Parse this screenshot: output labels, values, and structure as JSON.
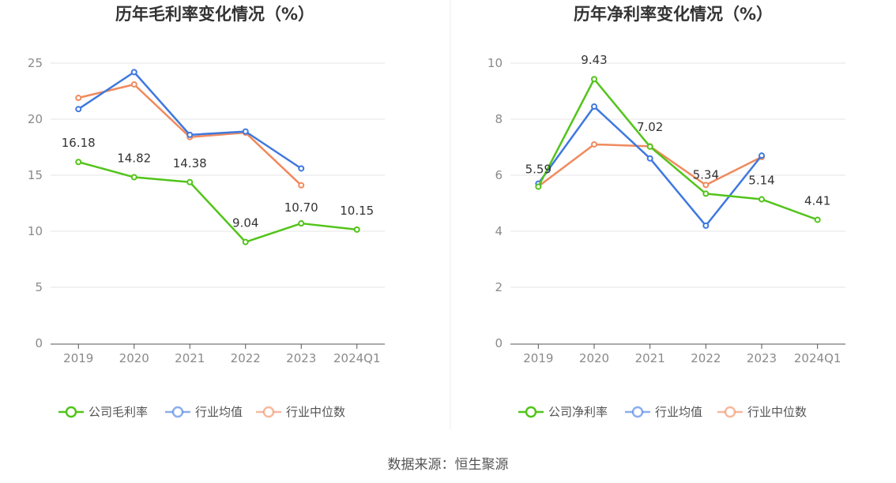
{
  "source": "数据来源：恒生聚源",
  "chart_data": [
    {
      "type": "line",
      "title": "历年毛利率变化情况（%）",
      "categories": [
        "2019",
        "2020",
        "2021",
        "2022",
        "2023",
        "2024Q1"
      ],
      "ylim": [
        0,
        25
      ],
      "yticks": [
        0,
        5,
        10,
        15,
        20,
        25
      ],
      "grid": true,
      "legend_position": "bottom",
      "series": [
        {
          "name": "公司毛利率",
          "color": "#52c41a",
          "values": [
            16.18,
            14.82,
            14.38,
            9.04,
            10.7,
            10.15
          ],
          "labels": [
            "16.18",
            "14.82",
            "14.38",
            "9.04",
            "10.70",
            "10.15"
          ]
        },
        {
          "name": "行业均值",
          "color": "#3f78e0",
          "values": [
            20.9,
            24.2,
            18.6,
            18.9,
            15.6,
            null
          ]
        },
        {
          "name": "行业中位数",
          "color": "#f08a5d",
          "values": [
            21.9,
            23.1,
            18.4,
            18.8,
            14.1,
            null
          ]
        }
      ]
    },
    {
      "type": "line",
      "title": "历年净利率变化情况（%）",
      "categories": [
        "2019",
        "2020",
        "2021",
        "2022",
        "2023",
        "2024Q1"
      ],
      "ylim": [
        0,
        10
      ],
      "yticks": [
        0,
        2,
        4,
        6,
        8,
        10
      ],
      "grid": true,
      "legend_position": "bottom",
      "series": [
        {
          "name": "公司净利率",
          "color": "#52c41a",
          "values": [
            5.59,
            9.43,
            7.02,
            5.34,
            5.14,
            4.41
          ],
          "labels": [
            "5.59",
            "9.43",
            "7.02",
            "5.34",
            "5.14",
            "4.41"
          ]
        },
        {
          "name": "行业均值",
          "color": "#3f78e0",
          "values": [
            5.7,
            8.45,
            6.6,
            4.2,
            6.7,
            null
          ]
        },
        {
          "name": "行业中位数",
          "color": "#f08a5d",
          "values": [
            5.6,
            7.1,
            7.03,
            5.65,
            6.65,
            null
          ]
        }
      ]
    }
  ]
}
